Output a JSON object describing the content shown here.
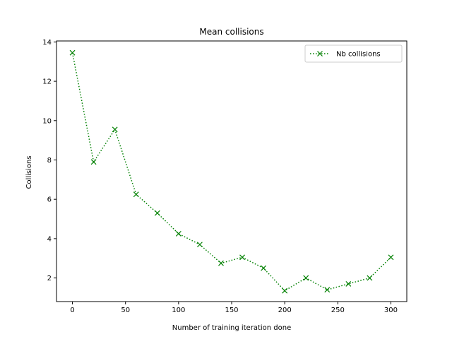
{
  "chart_data": {
    "type": "line",
    "title": "Mean collisions",
    "xlabel": "Number of training iteration done",
    "ylabel": "Collisions",
    "xlim": [
      -15,
      315
    ],
    "ylim": [
      0.8,
      14.05
    ],
    "xticks": [
      0,
      50,
      100,
      150,
      200,
      250,
      300
    ],
    "yticks": [
      2,
      4,
      6,
      8,
      10,
      12,
      14
    ],
    "grid": false,
    "legend_position": "top-right",
    "series": [
      {
        "name": "Nb collisions",
        "color": "#008000",
        "line_style": "dotted",
        "marker": "x",
        "x": [
          0,
          20,
          40,
          60,
          80,
          100,
          120,
          140,
          160,
          180,
          200,
          220,
          240,
          260,
          280,
          300
        ],
        "y": [
          13.45,
          7.9,
          9.55,
          6.25,
          5.3,
          4.25,
          3.7,
          2.75,
          3.05,
          2.5,
          1.35,
          2.0,
          1.4,
          1.7,
          2.0,
          3.05
        ]
      }
    ]
  }
}
